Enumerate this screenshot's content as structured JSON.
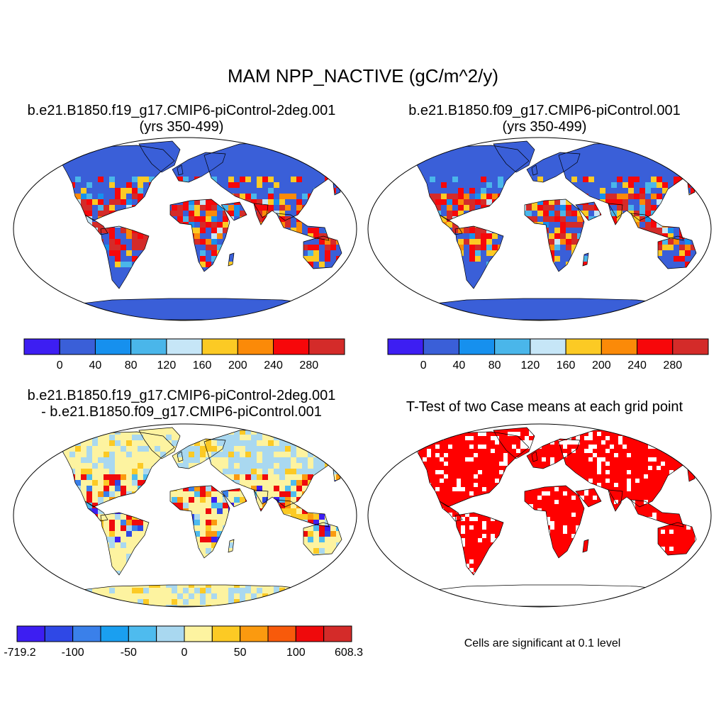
{
  "title": "MAM NPP_NACTIVE (gC/m^2/y)",
  "panels": [
    {
      "id": "case1",
      "title_lines": [
        "b.e21.B1850.f19_g17.CMIP6-piControl-2deg.001",
        "(yrs 350-499)"
      ],
      "background_color": "#3a5fd8",
      "land_pattern": "npp",
      "colorbar": {
        "colors": [
          "#3d1ef2",
          "#3a5fd8",
          "#1690ee",
          "#4ab6ea",
          "#c6e6f7",
          "#fcca24",
          "#fb8a08",
          "#f7070a",
          "#d42b29"
        ],
        "labels": [
          "0",
          "40",
          "80",
          "120",
          "160",
          "200",
          "240",
          "280"
        ]
      }
    },
    {
      "id": "case2",
      "title_lines": [
        "b.e21.B1850.f09_g17.CMIP6-piControl.001",
        "(yrs 350-499)"
      ],
      "background_color": "#3a5fd8",
      "land_pattern": "npp",
      "colorbar": {
        "colors": [
          "#3d1ef2",
          "#3a5fd8",
          "#1690ee",
          "#4ab6ea",
          "#c6e6f7",
          "#fcca24",
          "#fb8a08",
          "#f7070a",
          "#d42b29"
        ],
        "labels": [
          "0",
          "40",
          "80",
          "120",
          "160",
          "200",
          "240",
          "280"
        ]
      }
    },
    {
      "id": "diff",
      "title_lines": [
        "b.e21.B1850.f19_g17.CMIP6-piControl-2deg.001",
        "- b.e21.B1850.f09_g17.CMIP6-piControl.001"
      ],
      "background_color": "#fdf3a0",
      "land_pattern": "diff",
      "colorbar": {
        "colors": [
          "#3d1ef2",
          "#2f48e6",
          "#3a80ea",
          "#1a9ff0",
          "#4ebbee",
          "#a9d8f0",
          "#fdf3a0",
          "#fcca24",
          "#fb9a0f",
          "#f85a0b",
          "#ef0a0c",
          "#d42b29"
        ],
        "labels": [
          "-719.2",
          "-100",
          "-50",
          "0",
          "50",
          "100",
          "608.3"
        ]
      }
    },
    {
      "id": "ttest",
      "title_lines": [
        "T-Test of two Case means at each grid point"
      ],
      "background_color": "#ffffff",
      "land_pattern": "ttest",
      "significant_color": "#ff0000",
      "note": "Cells are significant at 0.1 level"
    }
  ]
}
